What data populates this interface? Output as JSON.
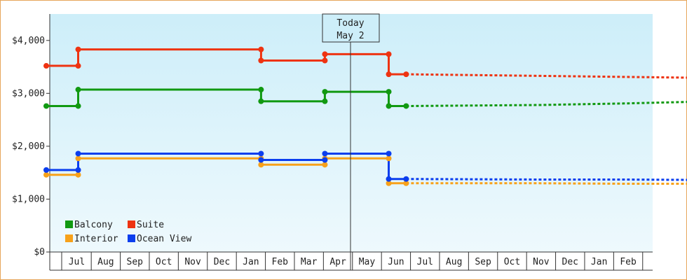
{
  "chart_data": {
    "type": "line",
    "title": "",
    "xlabel": "",
    "ylabel": "",
    "ylim": [
      0,
      4500
    ],
    "y_ticks": [
      "$0",
      "$1,000",
      "$2,000",
      "$3,000",
      "$4,000"
    ],
    "y_tick_values": [
      0,
      1000,
      2000,
      3000,
      4000
    ],
    "month_labels": [
      "Jul",
      "Aug",
      "Sep",
      "Oct",
      "Nov",
      "Dec",
      "Jan",
      "Feb",
      "Mar",
      "Apr",
      "May",
      "Jun",
      "Jul",
      "Aug",
      "Sep",
      "Oct",
      "Nov",
      "Dec",
      "Jan",
      "Feb"
    ],
    "x_unit": "months from Jun 1 (day index)",
    "today": {
      "line1": "Today",
      "line2": "May 2"
    },
    "legend_position": "bottom-left",
    "grid": false,
    "series": [
      {
        "name": "Balcony",
        "color": "#119911",
        "history": [
          [
            0,
            2760
          ],
          [
            1.1,
            2760
          ],
          [
            1.1,
            3070
          ],
          [
            7.4,
            3070
          ],
          [
            7.4,
            2850
          ],
          [
            9.6,
            2850
          ],
          [
            9.6,
            3030
          ],
          [
            11.8,
            3030
          ],
          [
            11.8,
            2760
          ],
          [
            12.4,
            2760
          ]
        ],
        "forecast": [
          [
            12.4,
            2760
          ],
          [
            17,
            2780
          ],
          [
            20,
            2810
          ],
          [
            23,
            2850
          ],
          [
            26,
            2880
          ],
          [
            29,
            2920
          ],
          [
            31.4,
            2940
          ]
        ]
      },
      {
        "name": "Suite",
        "color": "#ee3311",
        "history": [
          [
            0,
            3520
          ],
          [
            1.1,
            3520
          ],
          [
            1.1,
            3830
          ],
          [
            7.4,
            3830
          ],
          [
            7.4,
            3620
          ],
          [
            9.6,
            3620
          ],
          [
            9.6,
            3740
          ],
          [
            11.8,
            3740
          ],
          [
            11.8,
            3360
          ],
          [
            12.4,
            3360
          ]
        ],
        "forecast": [
          [
            12.4,
            3360
          ],
          [
            17,
            3330
          ],
          [
            20,
            3310
          ],
          [
            23,
            3290
          ],
          [
            26,
            3260
          ],
          [
            29,
            3250
          ],
          [
            31.4,
            3220
          ]
        ]
      },
      {
        "name": "Interior",
        "color": "#f7a11a",
        "history": [
          [
            0,
            1460
          ],
          [
            1.1,
            1460
          ],
          [
            1.1,
            1770
          ],
          [
            7.4,
            1770
          ],
          [
            7.4,
            1650
          ],
          [
            9.6,
            1650
          ],
          [
            9.6,
            1770
          ],
          [
            11.8,
            1770
          ],
          [
            11.8,
            1300
          ],
          [
            12.4,
            1300
          ]
        ],
        "forecast": [
          [
            12.4,
            1300
          ],
          [
            17,
            1300
          ],
          [
            20,
            1290
          ],
          [
            23,
            1290
          ],
          [
            26,
            1290
          ],
          [
            29,
            1280
          ],
          [
            31.4,
            1280
          ]
        ]
      },
      {
        "name": "Ocean View",
        "color": "#0b3eee",
        "history": [
          [
            0,
            1550
          ],
          [
            1.1,
            1550
          ],
          [
            1.1,
            1860
          ],
          [
            7.4,
            1860
          ],
          [
            7.4,
            1740
          ],
          [
            9.6,
            1740
          ],
          [
            9.6,
            1860
          ],
          [
            11.8,
            1860
          ],
          [
            11.8,
            1380
          ],
          [
            12.4,
            1380
          ]
        ],
        "forecast": [
          [
            12.4,
            1380
          ],
          [
            17,
            1370
          ],
          [
            20,
            1370
          ],
          [
            23,
            1360
          ],
          [
            26,
            1360
          ],
          [
            29,
            1360
          ],
          [
            31.4,
            1360
          ]
        ]
      }
    ],
    "markers": {
      "Balcony": [
        [
          0,
          2760
        ],
        [
          1.1,
          2760
        ],
        [
          1.1,
          3070
        ],
        [
          7.4,
          3070
        ],
        [
          7.4,
          2850
        ],
        [
          9.6,
          2850
        ],
        [
          9.6,
          3030
        ],
        [
          11.8,
          3030
        ],
        [
          11.8,
          2760
        ],
        [
          12.4,
          2760
        ]
      ],
      "Suite": [
        [
          0,
          3520
        ],
        [
          1.1,
          3520
        ],
        [
          1.1,
          3830
        ],
        [
          7.4,
          3830
        ],
        [
          7.4,
          3620
        ],
        [
          9.6,
          3620
        ],
        [
          9.6,
          3740
        ],
        [
          11.8,
          3740
        ],
        [
          11.8,
          3360
        ],
        [
          12.4,
          3360
        ]
      ],
      "Interior": [
        [
          0,
          1460
        ],
        [
          1.1,
          1460
        ],
        [
          1.1,
          1770
        ],
        [
          7.4,
          1770
        ],
        [
          7.4,
          1650
        ],
        [
          9.6,
          1650
        ],
        [
          9.6,
          1770
        ],
        [
          11.8,
          1770
        ],
        [
          11.8,
          1300
        ],
        [
          12.4,
          1300
        ]
      ],
      "Ocean View": [
        [
          0,
          1550
        ],
        [
          1.1,
          1550
        ],
        [
          1.1,
          1860
        ],
        [
          7.4,
          1860
        ],
        [
          7.4,
          1740
        ],
        [
          9.6,
          1740
        ],
        [
          9.6,
          1860
        ],
        [
          11.8,
          1860
        ],
        [
          11.8,
          1380
        ],
        [
          12.4,
          1380
        ]
      ]
    }
  }
}
